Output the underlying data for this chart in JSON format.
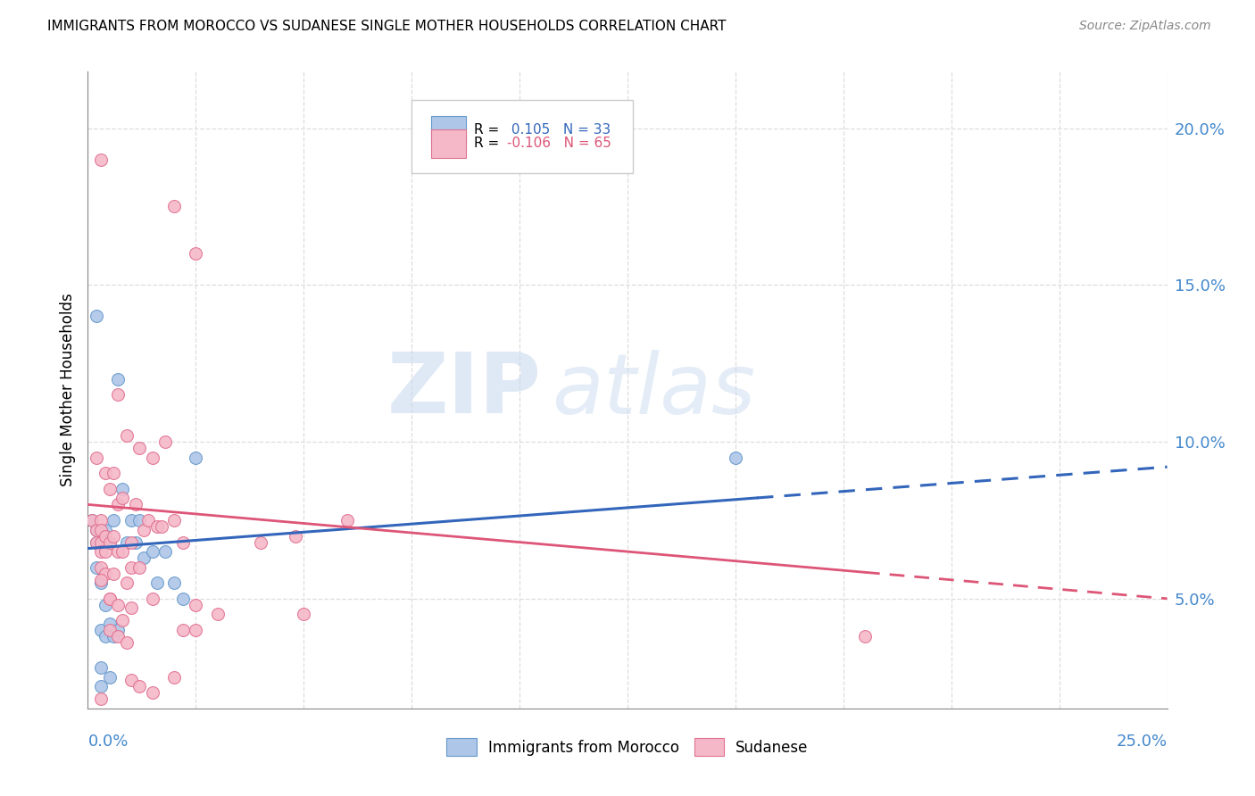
{
  "title": "IMMIGRANTS FROM MOROCCO VS SUDANESE SINGLE MOTHER HOUSEHOLDS CORRELATION CHART",
  "source": "Source: ZipAtlas.com",
  "ylabel": "Single Mother Households",
  "yticks": [
    0.05,
    0.1,
    0.15,
    0.2
  ],
  "ytick_labels": [
    "5.0%",
    "10.0%",
    "15.0%",
    "20.0%"
  ],
  "xmin": 0.0,
  "xmax": 0.25,
  "ymin": 0.015,
  "ymax": 0.218,
  "legend1_r": "0.105",
  "legend1_n": "33",
  "legend2_r": "-0.106",
  "legend2_n": "65",
  "color_morocco": "#aec6e8",
  "color_sudanese": "#f5b8c8",
  "color_morocco_edge": "#6699cc",
  "color_sudanese_edge": "#e07090",
  "trend_morocco_color": "#3366bb",
  "trend_sudanese_color": "#dd5577",
  "watermark_zip": "ZIP",
  "watermark_atlas": "atlas",
  "morocco_x": [
    0.001,
    0.002,
    0.002,
    0.002,
    0.002,
    0.003,
    0.003,
    0.003,
    0.003,
    0.004,
    0.004,
    0.004,
    0.004,
    0.005,
    0.005,
    0.006,
    0.006,
    0.007,
    0.007,
    0.008,
    0.009,
    0.01,
    0.011,
    0.012,
    0.013,
    0.015,
    0.016,
    0.018,
    0.02,
    0.022,
    0.025,
    0.15,
    0.003
  ],
  "morocco_y": [
    0.075,
    0.06,
    0.068,
    0.072,
    0.14,
    0.07,
    0.055,
    0.04,
    0.028,
    0.038,
    0.048,
    0.068,
    0.072,
    0.042,
    0.025,
    0.038,
    0.075,
    0.04,
    0.12,
    0.085,
    0.068,
    0.075,
    0.068,
    0.075,
    0.063,
    0.065,
    0.055,
    0.065,
    0.055,
    0.05,
    0.095,
    0.095,
    0.022
  ],
  "sudanese_x": [
    0.001,
    0.002,
    0.002,
    0.002,
    0.003,
    0.003,
    0.003,
    0.003,
    0.003,
    0.003,
    0.004,
    0.004,
    0.004,
    0.004,
    0.005,
    0.005,
    0.005,
    0.005,
    0.006,
    0.006,
    0.006,
    0.007,
    0.007,
    0.007,
    0.007,
    0.008,
    0.008,
    0.008,
    0.009,
    0.009,
    0.01,
    0.01,
    0.01,
    0.011,
    0.012,
    0.012,
    0.013,
    0.014,
    0.015,
    0.015,
    0.016,
    0.017,
    0.018,
    0.02,
    0.02,
    0.022,
    0.022,
    0.025,
    0.025,
    0.025,
    0.03,
    0.04,
    0.048,
    0.05,
    0.06,
    0.003,
    0.005,
    0.007,
    0.009,
    0.01,
    0.012,
    0.015,
    0.02,
    0.18,
    0.003
  ],
  "sudanese_y": [
    0.075,
    0.072,
    0.068,
    0.095,
    0.19,
    0.075,
    0.072,
    0.068,
    0.065,
    0.06,
    0.09,
    0.07,
    0.065,
    0.058,
    0.085,
    0.068,
    0.05,
    0.04,
    0.09,
    0.07,
    0.058,
    0.115,
    0.08,
    0.065,
    0.038,
    0.082,
    0.065,
    0.043,
    0.102,
    0.055,
    0.068,
    0.06,
    0.047,
    0.08,
    0.098,
    0.06,
    0.072,
    0.075,
    0.095,
    0.05,
    0.073,
    0.073,
    0.1,
    0.175,
    0.075,
    0.068,
    0.04,
    0.16,
    0.048,
    0.04,
    0.045,
    0.068,
    0.07,
    0.045,
    0.075,
    0.056,
    0.05,
    0.048,
    0.036,
    0.024,
    0.022,
    0.02,
    0.025,
    0.038,
    0.018
  ],
  "trend_morocco_x0": 0.0,
  "trend_morocco_y0": 0.066,
  "trend_morocco_x1": 0.25,
  "trend_morocco_y1": 0.092,
  "trend_morocco_solid_end": 0.155,
  "trend_sudanese_x0": 0.0,
  "trend_sudanese_y0": 0.08,
  "trend_sudanese_x1": 0.25,
  "trend_sudanese_y1": 0.05,
  "trend_sudanese_solid_end": 0.18
}
